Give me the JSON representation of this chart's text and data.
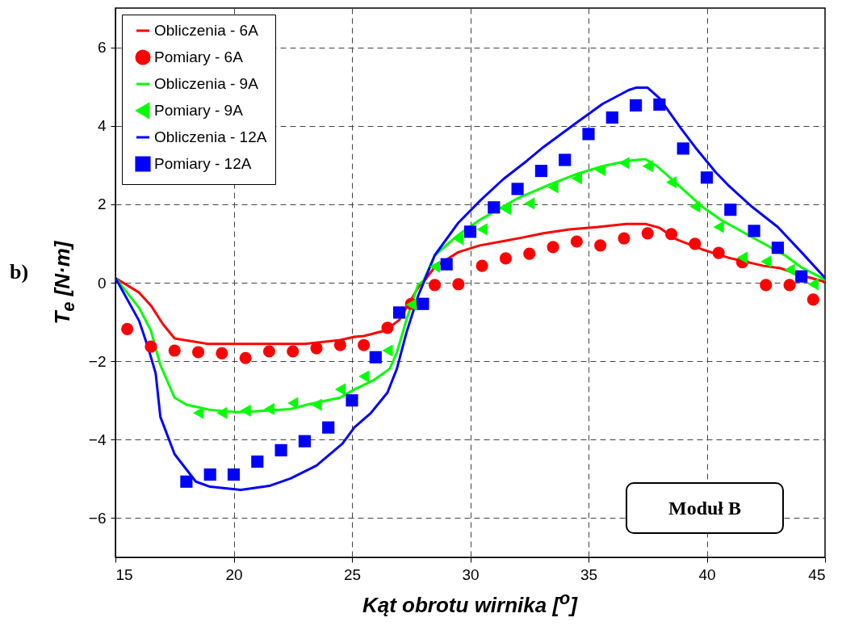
{
  "chart_data": {
    "type": "line",
    "xlabel": "Kąt obrotu wirnika [$^{o}$]",
    "ylabel": "T$_{e}$ [N·m]",
    "annotations": [
      "b)",
      "Moduł B"
    ],
    "xlim": [
      15,
      45
    ],
    "ylim": [
      -7,
      7
    ],
    "xticks": [
      15,
      20,
      25,
      30,
      35,
      40,
      45
    ],
    "yticks": [
      -6,
      -4,
      -2,
      0,
      2,
      4,
      6
    ],
    "grid": true,
    "legend": "top left",
    "series": [
      {
        "name": "Obliczenia - 6A",
        "type": "line",
        "color": "#ff0000",
        "x": [
          15,
          16,
          16.5,
          17,
          17.5,
          18.9,
          23,
          24.5,
          25.1,
          25.5,
          26.4,
          27,
          27.3,
          27.9,
          28.1,
          28.5,
          29.5,
          30.4,
          31.5,
          32.2,
          33.1,
          34.2,
          35.4,
          36.6,
          37.4,
          38,
          38.7,
          39.8,
          40.9,
          42.4,
          43.1,
          44,
          45
        ],
        "values": [
          0.12,
          -0.25,
          -0.58,
          -1.05,
          -1.42,
          -1.56,
          -1.56,
          -1.46,
          -1.38,
          -1.36,
          -1.22,
          -0.95,
          -0.64,
          -0.02,
          0.08,
          0.4,
          0.78,
          0.95,
          1.07,
          1.15,
          1.26,
          1.36,
          1.42,
          1.5,
          1.5,
          1.4,
          1.11,
          0.85,
          0.64,
          0.43,
          0.37,
          0.19,
          0.02
        ]
      },
      {
        "name": "Pomiary - 6A",
        "type": "scatter",
        "marker": "circle",
        "color": "#ff0000",
        "x": [
          15.5,
          16.5,
          17.5,
          18.5,
          19.5,
          20.5,
          21.5,
          22.5,
          23.5,
          24.5,
          25.5,
          26.5,
          27.5,
          28.5,
          29.5,
          30.5,
          31.5,
          32.5,
          33.5,
          34.5,
          35.5,
          36.5,
          37.5,
          38.5,
          39.5,
          40.5,
          41.5,
          42.5,
          43.5,
          44.5
        ],
        "values": [
          -1.18,
          -1.63,
          -1.73,
          -1.77,
          -1.8,
          -1.92,
          -1.75,
          -1.75,
          -1.67,
          -1.59,
          -1.59,
          -1.15,
          -0.54,
          -0.06,
          -0.04,
          0.43,
          0.62,
          0.74,
          0.91,
          1.05,
          0.95,
          1.13,
          1.26,
          1.24,
          0.99,
          0.76,
          0.52,
          -0.06,
          -0.06,
          -0.43
        ]
      },
      {
        "name": "Obliczenia - 9A",
        "type": "line",
        "color": "#00ff00",
        "x": [
          15,
          16,
          16.5,
          16.9,
          17.5,
          18,
          19,
          20.1,
          20.9,
          22.4,
          23.1,
          24.5,
          25.1,
          25.9,
          26.6,
          26.9,
          27.3,
          27.8,
          28,
          28.5,
          29.5,
          30.4,
          32,
          33.3,
          34.5,
          35.6,
          36.7,
          37.4,
          37.9,
          38.9,
          39.8,
          40.6,
          41.8,
          43.3,
          44,
          45
        ],
        "values": [
          0.12,
          -0.64,
          -1.22,
          -2.1,
          -2.93,
          -3.11,
          -3.24,
          -3.3,
          -3.28,
          -3.22,
          -3.11,
          -2.93,
          -2.72,
          -2.49,
          -2.19,
          -1.77,
          -0.95,
          -0.04,
          0.02,
          0.7,
          1.22,
          1.6,
          2.15,
          2.49,
          2.77,
          2.97,
          3.11,
          3.15,
          2.97,
          2.43,
          1.94,
          1.6,
          1.2,
          0.7,
          0.39,
          0.08
        ]
      },
      {
        "name": "Pomiary - 9A",
        "type": "scatter",
        "marker": "triangle",
        "color": "#00ff00",
        "x": [
          18.5,
          19.5,
          20.5,
          21.5,
          22.5,
          23.5,
          24.5,
          25.5,
          26.5,
          27.5,
          28.5,
          29.5,
          30.5,
          31.5,
          32.5,
          33.5,
          34.5,
          35.5,
          36.5,
          37.5,
          38.5,
          39.5,
          40.5,
          41.5,
          42.5,
          43.5,
          44.5
        ],
        "values": [
          -3.32,
          -3.32,
          -3.26,
          -3.22,
          -3.07,
          -3.11,
          -2.72,
          -2.39,
          -1.73,
          -0.56,
          0.41,
          1.11,
          1.36,
          1.88,
          2.02,
          2.43,
          2.66,
          2.87,
          3.05,
          2.97,
          2.56,
          1.94,
          1.42,
          0.64,
          0.54,
          0.33,
          -0.04
        ]
      },
      {
        "name": "Obliczenia - 12A",
        "type": "line",
        "color": "#0000ff",
        "x": [
          15,
          16,
          16.4,
          16.7,
          16.9,
          17.5,
          18.4,
          19,
          20.3,
          21.5,
          22.4,
          23.5,
          24.6,
          25.1,
          25.8,
          26.5,
          26.9,
          27.3,
          27.8,
          28,
          28.5,
          29.5,
          30.4,
          31.4,
          32.4,
          33.1,
          34.5,
          35.6,
          36.7,
          37,
          37.5,
          38,
          38.9,
          39.5,
          40.4,
          40.9,
          41.9,
          43,
          44,
          45
        ],
        "values": [
          0.12,
          -0.97,
          -1.69,
          -2.31,
          -3.42,
          -4.37,
          -5.07,
          -5.2,
          -5.28,
          -5.18,
          -4.99,
          -4.66,
          -4.1,
          -3.69,
          -3.32,
          -2.8,
          -2.19,
          -1.28,
          -0.33,
          -0.04,
          0.7,
          1.53,
          2.08,
          2.64,
          3.11,
          3.46,
          4.08,
          4.56,
          4.91,
          4.97,
          4.97,
          4.7,
          3.94,
          3.46,
          2.8,
          2.49,
          1.94,
          1.42,
          0.78,
          0.12
        ]
      },
      {
        "name": "Pomiary - 12A",
        "type": "scatter",
        "marker": "square",
        "color": "#0000ff",
        "x": [
          18,
          19,
          20,
          21,
          22,
          23,
          24,
          25,
          26,
          27,
          28,
          29,
          30,
          31,
          32,
          33,
          34,
          35,
          36,
          37,
          38,
          39,
          40,
          41,
          42,
          43,
          44
        ],
        "values": [
          -5.07,
          -4.89,
          -4.89,
          -4.56,
          -4.27,
          -4.04,
          -3.69,
          -3.0,
          -1.9,
          -0.76,
          -0.54,
          0.47,
          1.3,
          1.92,
          2.39,
          2.85,
          3.13,
          3.79,
          4.21,
          4.52,
          4.54,
          3.42,
          2.68,
          1.86,
          1.32,
          0.89,
          0.16
        ]
      }
    ]
  }
}
